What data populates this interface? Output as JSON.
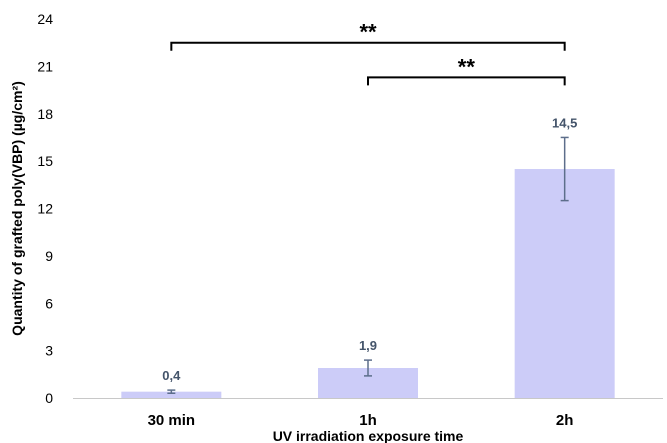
{
  "chart_data": {
    "type": "bar",
    "title": "",
    "xlabel": "UV irradiation exposure time",
    "ylabel": "Quantity of grafted poly(VBP) (µg/cm²)",
    "ylim": [
      0,
      24
    ],
    "yticks": [
      0,
      3,
      6,
      9,
      12,
      15,
      18,
      21,
      24
    ],
    "categories": [
      "30 min",
      "1h",
      "2h"
    ],
    "values": [
      0.4,
      1.9,
      14.5
    ],
    "data_labels": [
      "0,4",
      "1,9",
      "14,5"
    ],
    "errors": [
      0.1,
      0.5,
      2.0
    ],
    "grid": false,
    "legend": "none",
    "colors": {
      "bar": "#ccccf8",
      "error_bar": "#5d6e8b",
      "data_label": "#44546a",
      "axis": "#c8c8c8",
      "bracket": "#000000"
    },
    "annotations": [
      {
        "from": "30 min",
        "to": "2h",
        "text": "**",
        "level": 22.5
      },
      {
        "from": "1h",
        "to": "2h",
        "text": "**",
        "level": 20.3
      }
    ]
  }
}
